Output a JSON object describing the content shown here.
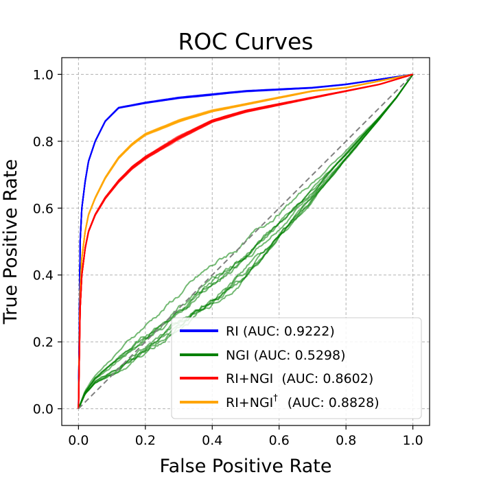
{
  "chart_data": {
    "type": "line",
    "title": "ROC Curves",
    "xlabel": "False Positive Rate",
    "ylabel": "True Positive Rate",
    "xlim": [
      -0.05,
      1.05
    ],
    "ylim": [
      -0.05,
      1.05
    ],
    "xticks": [
      0.0,
      0.2,
      0.4,
      0.6,
      0.8,
      1.0
    ],
    "yticks": [
      0.0,
      0.2,
      0.4,
      0.6,
      0.8,
      1.0
    ],
    "xtick_labels": [
      "0.0",
      "0.2",
      "0.4",
      "0.6",
      "0.8",
      "1.0"
    ],
    "ytick_labels": [
      "0.0",
      "0.2",
      "0.4",
      "0.6",
      "0.8",
      "1.0"
    ],
    "grid": true,
    "legend_position": "bottom-right",
    "chance_line": {
      "x": [
        0,
        1
      ],
      "y": [
        0,
        1
      ],
      "color": "#808080",
      "style": "dashed"
    },
    "series": [
      {
        "name": "RI (AUC: 0.9222)",
        "auc": 0.9222,
        "color": "#0000ff",
        "x": [
          0,
          0.005,
          0.01,
          0.02,
          0.03,
          0.05,
          0.08,
          0.12,
          0.2,
          0.3,
          0.4,
          0.5,
          0.6,
          0.7,
          0.8,
          0.9,
          1.0
        ],
        "y": [
          0,
          0.5,
          0.6,
          0.68,
          0.74,
          0.8,
          0.86,
          0.9,
          0.915,
          0.93,
          0.94,
          0.95,
          0.955,
          0.96,
          0.97,
          0.985,
          1.0
        ]
      },
      {
        "name": "NGI (AUC: 0.5298)",
        "auc": 0.5298,
        "color": "#008000",
        "x": [
          0,
          0.02,
          0.05,
          0.1,
          0.15,
          0.2,
          0.3,
          0.4,
          0.5,
          0.6,
          0.7,
          0.8,
          0.9,
          0.95,
          1.0
        ],
        "y": [
          0,
          0.05,
          0.09,
          0.13,
          0.17,
          0.21,
          0.29,
          0.37,
          0.45,
          0.55,
          0.65,
          0.76,
          0.87,
          0.93,
          1.0
        ]
      },
      {
        "name": "RI+NGI  (AUC: 0.8602)",
        "auc": 0.8602,
        "color": "#ff0000",
        "x": [
          0,
          0.005,
          0.01,
          0.02,
          0.03,
          0.05,
          0.08,
          0.12,
          0.16,
          0.2,
          0.3,
          0.4,
          0.5,
          0.6,
          0.7,
          0.8,
          0.9,
          1.0
        ],
        "y": [
          0,
          0.3,
          0.4,
          0.48,
          0.53,
          0.58,
          0.63,
          0.68,
          0.72,
          0.75,
          0.81,
          0.86,
          0.89,
          0.91,
          0.93,
          0.95,
          0.97,
          1.0
        ]
      },
      {
        "name": "RI+NGI",
        "name_suffix": "†",
        "name_auc": "(AUC: 0.8828)",
        "auc": 0.8828,
        "color": "#ffa500",
        "x": [
          0,
          0.005,
          0.01,
          0.02,
          0.03,
          0.05,
          0.08,
          0.12,
          0.16,
          0.2,
          0.3,
          0.4,
          0.5,
          0.6,
          0.7,
          0.8,
          0.9,
          1.0
        ],
        "y": [
          0,
          0.35,
          0.45,
          0.53,
          0.58,
          0.63,
          0.69,
          0.75,
          0.79,
          0.82,
          0.86,
          0.89,
          0.91,
          0.93,
          0.95,
          0.96,
          0.98,
          1.0
        ]
      }
    ]
  }
}
